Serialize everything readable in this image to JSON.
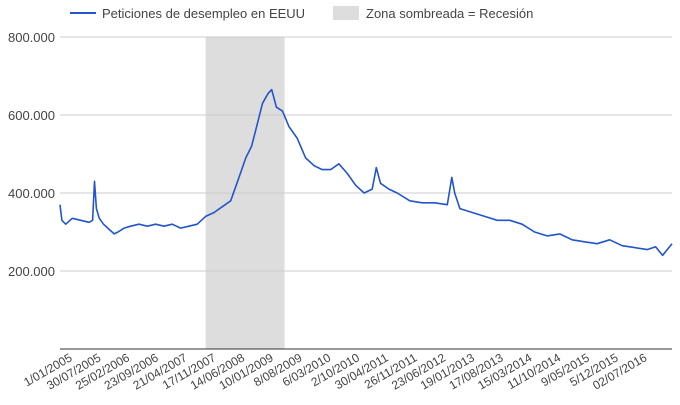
{
  "chart_data": {
    "type": "line",
    "title": "",
    "xlabel": "",
    "ylabel": "",
    "ylim": [
      0,
      800000
    ],
    "yticks": [
      200000,
      400000,
      600000,
      800000
    ],
    "ytick_labels": [
      "200.000",
      "400.000",
      "600.000",
      "800.000"
    ],
    "grid": "horizontal",
    "legend_position": "top-left",
    "legend": [
      {
        "label": "Peticiones de desempleo en EEUU",
        "kind": "line",
        "color": "#2255cc"
      },
      {
        "label": "Zona sombreada = Recesión",
        "kind": "box",
        "color": "#dddddd"
      }
    ],
    "x_range": [
      "2005-01-01",
      "2017-03-31"
    ],
    "x_ticks": [
      "2005-01-01",
      "2005-07-30",
      "2006-02-25",
      "2006-09-23",
      "2007-04-21",
      "2007-11-17",
      "2008-06-14",
      "2009-01-10",
      "2009-08-08",
      "2010-03-06",
      "2010-10-02",
      "2011-04-30",
      "2011-11-26",
      "2012-06-23",
      "2013-01-19",
      "2013-08-17",
      "2014-03-15",
      "2014-10-11",
      "2015-05-09",
      "2015-12-05",
      "2016-07-02"
    ],
    "x_tick_labels": [
      "1/01/2005",
      "30/07/2005",
      "25/02/2006",
      "23/09/2006",
      "21/04/2007",
      "17/11/2007",
      "14/06/2008",
      "10/01/2009",
      "8/08/2009",
      "6/03/2010",
      "2/10/2010",
      "30/04/2011",
      "26/11/2011",
      "23/06/2012",
      "19/01/2013",
      "17/08/2013",
      "15/03/2014",
      "11/10/2014",
      "9/05/2015",
      "5/12/2015",
      "02/07/2016"
    ],
    "recession": {
      "start": "2007-12-01",
      "end": "2009-06-30"
    },
    "series": [
      {
        "name": "Peticiones de desempleo en EEUU",
        "color": "#2255cc",
        "points": [
          [
            "2005-01-01",
            370000
          ],
          [
            "2005-01-15",
            330000
          ],
          [
            "2005-02-12",
            320000
          ],
          [
            "2005-04-01",
            335000
          ],
          [
            "2005-06-01",
            330000
          ],
          [
            "2005-08-01",
            325000
          ],
          [
            "2005-08-27",
            330000
          ],
          [
            "2005-09-10",
            430000
          ],
          [
            "2005-09-24",
            360000
          ],
          [
            "2005-10-15",
            335000
          ],
          [
            "2005-11-15",
            320000
          ],
          [
            "2006-01-01",
            305000
          ],
          [
            "2006-02-01",
            295000
          ],
          [
            "2006-03-01",
            300000
          ],
          [
            "2006-04-15",
            310000
          ],
          [
            "2006-06-01",
            315000
          ],
          [
            "2006-08-01",
            320000
          ],
          [
            "2006-10-01",
            315000
          ],
          [
            "2006-12-01",
            320000
          ],
          [
            "2007-02-01",
            315000
          ],
          [
            "2007-04-01",
            320000
          ],
          [
            "2007-06-01",
            310000
          ],
          [
            "2007-08-01",
            315000
          ],
          [
            "2007-10-01",
            320000
          ],
          [
            "2007-12-01",
            340000
          ],
          [
            "2008-02-01",
            350000
          ],
          [
            "2008-04-01",
            365000
          ],
          [
            "2008-06-01",
            380000
          ],
          [
            "2008-08-01",
            440000
          ],
          [
            "2008-09-20",
            490000
          ],
          [
            "2008-11-01",
            520000
          ],
          [
            "2008-12-15",
            580000
          ],
          [
            "2009-01-20",
            630000
          ],
          [
            "2009-03-01",
            655000
          ],
          [
            "2009-03-28",
            665000
          ],
          [
            "2009-05-01",
            620000
          ],
          [
            "2009-06-15",
            610000
          ],
          [
            "2009-08-01",
            570000
          ],
          [
            "2009-10-01",
            540000
          ],
          [
            "2009-12-01",
            490000
          ],
          [
            "2010-02-01",
            470000
          ],
          [
            "2010-04-01",
            460000
          ],
          [
            "2010-06-01",
            460000
          ],
          [
            "2010-08-01",
            475000
          ],
          [
            "2010-10-01",
            450000
          ],
          [
            "2010-12-01",
            420000
          ],
          [
            "2011-02-01",
            400000
          ],
          [
            "2011-04-01",
            410000
          ],
          [
            "2011-05-01",
            465000
          ],
          [
            "2011-06-01",
            425000
          ],
          [
            "2011-08-01",
            410000
          ],
          [
            "2011-10-01",
            400000
          ],
          [
            "2012-01-01",
            380000
          ],
          [
            "2012-04-01",
            375000
          ],
          [
            "2012-07-01",
            375000
          ],
          [
            "2012-10-01",
            370000
          ],
          [
            "2012-11-03",
            440000
          ],
          [
            "2012-11-24",
            400000
          ],
          [
            "2013-01-01",
            360000
          ],
          [
            "2013-04-01",
            350000
          ],
          [
            "2013-07-01",
            340000
          ],
          [
            "2013-10-01",
            330000
          ],
          [
            "2014-01-01",
            330000
          ],
          [
            "2014-04-01",
            320000
          ],
          [
            "2014-07-01",
            300000
          ],
          [
            "2014-10-01",
            290000
          ],
          [
            "2015-01-01",
            295000
          ],
          [
            "2015-04-01",
            280000
          ],
          [
            "2015-07-01",
            275000
          ],
          [
            "2015-10-01",
            270000
          ],
          [
            "2016-01-01",
            280000
          ],
          [
            "2016-04-01",
            265000
          ],
          [
            "2016-07-01",
            260000
          ],
          [
            "2016-10-01",
            255000
          ],
          [
            "2016-12-01",
            262000
          ],
          [
            "2017-01-21",
            240000
          ],
          [
            "2017-03-31",
            270000
          ]
        ]
      }
    ]
  }
}
